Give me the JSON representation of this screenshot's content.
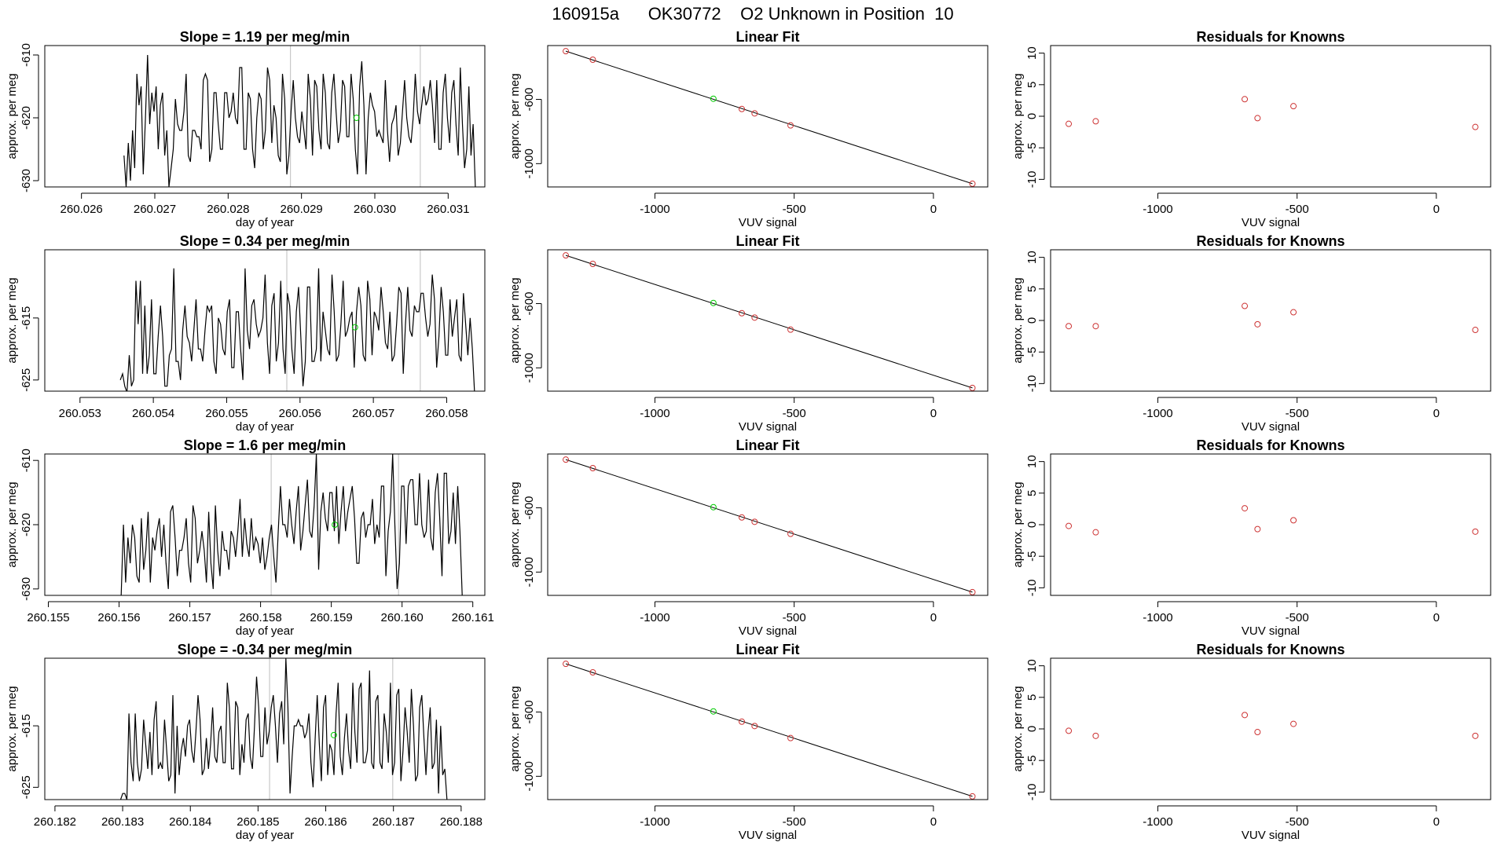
{
  "figure_title": "160915a      OK30772    O2 Unknown in Position  10",
  "colors": {
    "known": "#CD3333",
    "unknown": "#00CC00",
    "line": "#000000",
    "refline": "#BEBEBE"
  },
  "chart_data": [
    {
      "type": "line",
      "row": 0,
      "panel": "timeseries",
      "title": "Slope =  1.19  per meg/min",
      "xlabel": "day of year",
      "ylabel": "approx. per meg",
      "xlim": [
        260.0255,
        260.0315
      ],
      "ylim": [
        -631,
        -608.5
      ],
      "xticks": [
        "260.026",
        "260.027",
        "260.028",
        "260.029",
        "260.030",
        "260.031"
      ],
      "yticks": [
        "-610",
        "-620",
        "-630"
      ],
      "series_start": 260.02658,
      "series_end": 260.03137,
      "unknown_point": {
        "x": 260.02975,
        "y": -620.0
      },
      "ref_lines": [
        260.02885,
        260.03062
      ],
      "values": [
        -626.0,
        -631.0,
        -624.0,
        -630.0,
        -622.0,
        -628.0,
        -613.0,
        -618.0,
        -615.0,
        -629.0,
        -620.0,
        -610.0,
        -621.0,
        -616.0,
        -619.0,
        -615.0,
        -625.0,
        -618.0,
        -616.0,
        -626.0,
        -622.0,
        -631.0,
        -628.0,
        -625.0,
        -617.0,
        -621.0,
        -622.0,
        -622.0,
        -619.0,
        -613.0,
        -626.0,
        -627.0,
        -622.0,
        -622.0,
        -623.0,
        -623.0,
        -625.0,
        -614.0,
        -613.0,
        -614.0,
        -627.0,
        -625.0,
        -616.0,
        -616.0,
        -621.0,
        -625.0,
        -625.0,
        -616.0,
        -616.0,
        -620.0,
        -619.0,
        -616.0,
        -620.0,
        -621.0,
        -612.0,
        -612.0,
        -625.0,
        -625.0,
        -616.0,
        -617.0,
        -625.0,
        -628.0,
        -620.0,
        -616.0,
        -617.0,
        -625.0,
        -622.0,
        -612.0,
        -614.0,
        -624.0,
        -618.0,
        -620.0,
        -626.0,
        -627.0,
        -613.0,
        -617.0,
        -629.0,
        -626.0,
        -619.0,
        -614.0,
        -620.0,
        -623.0,
        -624.0,
        -619.0,
        -622.0,
        -625.0,
        -613.0,
        -617.0,
        -626.0,
        -614.0,
        -615.0,
        -622.0,
        -625.0,
        -613.0,
        -616.0,
        -624.0,
        -625.0,
        -616.0,
        -613.0,
        -619.0,
        -624.0,
        -622.0,
        -614.0,
        -615.0,
        -623.0,
        -623.0,
        -613.0,
        -617.0,
        -625.0,
        -629.0,
        -615.0,
        -611.0,
        -618.0,
        -629.0,
        -620.0,
        -616.0,
        -618.0,
        -619.0,
        -623.0,
        -622.0,
        -623.0,
        -624.0,
        -614.0,
        -622.0,
        -627.0,
        -621.0,
        -620.0,
        -618.0,
        -626.0,
        -624.0,
        -619.0,
        -614.0,
        -620.0,
        -623.0,
        -624.0,
        -620.0,
        -613.0,
        -619.0,
        -621.0,
        -618.0,
        -615.0,
        -618.0,
        -617.0,
        -614.0,
        -618.0,
        -624.0,
        -614.0,
        -625.0,
        -625.0,
        -616.0,
        -613.0,
        -620.0,
        -624.0,
        -616.0,
        -614.0,
        -621.0,
        -626.0,
        -612.0,
        -621.0,
        -628.0,
        -625.0,
        -615.0,
        -626.0,
        -621.0,
        -631.0
      ]
    },
    {
      "type": "scatter",
      "row": 0,
      "panel": "linear_fit",
      "title": "Linear Fit",
      "xlabel": "VUV signal",
      "ylabel": "approx. per meg",
      "xlim": [
        -1385,
        195
      ],
      "ylim": [
        -1145,
        -265
      ],
      "xticks": [
        "-1000",
        "-500",
        "0"
      ],
      "yticks": [
        "-600",
        "-1000"
      ],
      "fit_line": {
        "x": [
          -1320,
          140
        ],
        "y": [
          -300,
          -1125
        ]
      },
      "known_points": {
        "x": [
          -1320,
          -1223,
          -688,
          -642,
          -513,
          140
        ],
        "y": [
          -300,
          -353,
          -660,
          -687,
          -762,
          -1125
        ]
      },
      "unknown_point": {
        "x": -790,
        "y": -596
      }
    },
    {
      "type": "scatter",
      "row": 0,
      "panel": "residuals",
      "title": "Residuals for Knowns",
      "xlabel": "VUV signal",
      "ylabel": "approx. per meg",
      "xlim": [
        -1385,
        195
      ],
      "ylim": [
        -11.2,
        11.2
      ],
      "xticks": [
        "-1000",
        "-500",
        "0"
      ],
      "yticks": [
        "10",
        "5",
        "0",
        "-5",
        "-10"
      ],
      "x": [
        -1320,
        -1223,
        -688,
        -642,
        -513,
        140
      ],
      "y": [
        -1.2,
        -0.8,
        2.7,
        -0.3,
        1.6,
        -1.7
      ]
    },
    {
      "type": "line",
      "row": 1,
      "panel": "timeseries",
      "title": "Slope =  0.34  per meg/min",
      "xlabel": "day of year",
      "ylabel": "approx. per meg",
      "xlim": [
        260.05252,
        260.05852
      ],
      "ylim": [
        -626.8,
        -604.0
      ],
      "xticks": [
        "260.053",
        "260.054",
        "260.055",
        "260.056",
        "260.057",
        "260.058"
      ],
      "yticks": [
        "-615",
        "-625"
      ],
      "series_start": 260.05355,
      "series_end": 260.05838,
      "unknown_point": {
        "x": 260.05675,
        "y": -616.5
      },
      "ref_lines": [
        260.05582,
        260.05764
      ],
      "values": [
        -625.0,
        -624.0,
        -626.0,
        -627.0,
        -621.0,
        -626.0,
        -625.0,
        -609.0,
        -616.0,
        -609.0,
        -624.0,
        -613.0,
        -624.0,
        -621.0,
        -612.0,
        -624.0,
        -624.0,
        -618.0,
        -613.0,
        -618.0,
        -626.0,
        -626.0,
        -621.0,
        -620.0,
        -607.0,
        -622.0,
        -622.0,
        -625.0,
        -617.0,
        -613.0,
        -618.0,
        -619.0,
        -622.0,
        -617.0,
        -612.0,
        -620.0,
        -620.0,
        -622.0,
        -617.0,
        -613.0,
        -614.0,
        -613.0,
        -622.0,
        -624.0,
        -615.0,
        -616.0,
        -620.0,
        -621.0,
        -614.0,
        -612.0,
        -623.0,
        -623.0,
        -614.0,
        -614.0,
        -620.0,
        -625.0,
        -607.0,
        -617.0,
        -620.0,
        -613.0,
        -612.0,
        -616.0,
        -618.0,
        -617.0,
        -615.0,
        -608.0,
        -619.0,
        -624.0,
        -613.0,
        -611.0,
        -622.0,
        -619.0,
        -609.0,
        -620.0,
        -624.0,
        -611.0,
        -613.0,
        -620.0,
        -624.0,
        -614.0,
        -610.0,
        -618.0,
        -626.0,
        -622.0,
        -610.0,
        -610.0,
        -622.0,
        -622.0,
        -620.0,
        -607.0,
        -622.0,
        -614.0,
        -617.0,
        -620.0,
        -621.0,
        -608.0,
        -614.0,
        -622.0,
        -621.0,
        -616.0,
        -609.0,
        -618.0,
        -617.0,
        -615.0,
        -614.0,
        -623.0,
        -614.0,
        -610.0,
        -613.0,
        -621.0,
        -622.0,
        -609.0,
        -612.0,
        -621.0,
        -614.0,
        -615.0,
        -617.0,
        -610.0,
        -614.0,
        -619.0,
        -620.0,
        -614.0,
        -622.0,
        -621.0,
        -616.0,
        -610.0,
        -611.0,
        -624.0,
        -616.0,
        -610.0,
        -617.0,
        -618.0,
        -613.0,
        -614.0,
        -614.0,
        -611.0,
        -611.0,
        -615.0,
        -618.0,
        -616.0,
        -608.0,
        -612.0,
        -623.0,
        -618.0,
        -610.0,
        -614.0,
        -621.0,
        -621.0,
        -612.0,
        -618.0,
        -615.0,
        -612.0,
        -621.0,
        -622.0,
        -611.0,
        -616.0,
        -621.0,
        -615.0,
        -620.0,
        -627.0
      ]
    },
    {
      "type": "scatter",
      "row": 1,
      "panel": "linear_fit",
      "title": "Linear Fit",
      "xlabel": "VUV signal",
      "ylabel": "approx. per meg",
      "xlim": [
        -1385,
        195
      ],
      "ylim": [
        -1145,
        -265
      ],
      "xticks": [
        "-1000",
        "-500",
        "0"
      ],
      "yticks": [
        "-600",
        "-1000"
      ],
      "fit_line": {
        "x": [
          -1320,
          140
        ],
        "y": [
          -300,
          -1125
        ]
      },
      "known_points": {
        "x": [
          -1320,
          -1223,
          -688,
          -642,
          -513,
          140
        ],
        "y": [
          -300,
          -353,
          -660,
          -687,
          -762,
          -1125
        ]
      },
      "unknown_point": {
        "x": -790,
        "y": -596
      }
    },
    {
      "type": "scatter",
      "row": 1,
      "panel": "residuals",
      "title": "Residuals for Knowns",
      "xlabel": "VUV signal",
      "ylabel": "approx. per meg",
      "xlim": [
        -1385,
        195
      ],
      "ylim": [
        -11.2,
        11.2
      ],
      "xticks": [
        "-1000",
        "-500",
        "0"
      ],
      "yticks": [
        "10",
        "5",
        "0",
        "-5",
        "-10"
      ],
      "x": [
        -1320,
        -1223,
        -688,
        -642,
        -513,
        140
      ],
      "y": [
        -0.9,
        -0.9,
        2.3,
        -0.6,
        1.3,
        -1.5
      ]
    },
    {
      "type": "line",
      "row": 2,
      "panel": "timeseries",
      "title": "Slope =  1.6  per meg/min",
      "xlabel": "day of year",
      "ylabel": "approx. per meg",
      "xlim": [
        260.15495,
        260.16117
      ],
      "ylim": [
        -631.0,
        -609.0
      ],
      "xticks": [
        "260.155",
        "260.156",
        "260.157",
        "260.158",
        "260.159",
        "260.160",
        "260.161"
      ],
      "yticks": [
        "-610",
        "-620",
        "-630"
      ],
      "series_start": 260.15603,
      "series_end": 260.16085,
      "unknown_point": {
        "x": 260.15905,
        "y": -620.0
      },
      "ref_lines": [
        260.15815,
        260.15995
      ],
      "values": [
        -631.0,
        -620.0,
        -629.0,
        -622.0,
        -626.0,
        -620.0,
        -622.0,
        -628.0,
        -629.0,
        -619.0,
        -627.0,
        -624.0,
        -618.0,
        -629.0,
        -622.0,
        -624.0,
        -621.0,
        -619.0,
        -625.0,
        -620.0,
        -626.0,
        -630.0,
        -618.0,
        -617.0,
        -622.0,
        -628.0,
        -624.0,
        -624.0,
        -622.0,
        -619.0,
        -626.0,
        -629.0,
        -617.0,
        -619.0,
        -626.0,
        -624.0,
        -621.0,
        -624.0,
        -629.0,
        -618.0,
        -626.0,
        -630.0,
        -617.0,
        -624.0,
        -628.0,
        -621.0,
        -624.0,
        -624.0,
        -627.0,
        -621.0,
        -622.0,
        -625.0,
        -621.0,
        -616.0,
        -625.0,
        -619.0,
        -623.0,
        -625.0,
        -619.0,
        -624.0,
        -622.0,
        -623.0,
        -626.0,
        -622.0,
        -627.0,
        -625.0,
        -622.0,
        -620.0,
        -625.0,
        -629.0,
        -621.0,
        -614.0,
        -620.0,
        -620.0,
        -622.0,
        -616.0,
        -620.0,
        -623.0,
        -618.0,
        -614.0,
        -624.0,
        -621.0,
        -617.0,
        -613.0,
        -621.0,
        -622.0,
        -617.0,
        -609.0,
        -627.0,
        -618.0,
        -615.0,
        -619.0,
        -621.0,
        -615.0,
        -615.0,
        -621.0,
        -614.0,
        -623.0,
        -618.0,
        -614.0,
        -621.0,
        -618.0,
        -616.0,
        -614.0,
        -619.0,
        -626.0,
        -626.0,
        -619.0,
        -618.0,
        -622.0,
        -620.0,
        -620.0,
        -616.0,
        -623.0,
        -620.0,
        -622.0,
        -614.0,
        -614.0,
        -628.0,
        -621.0,
        -618.0,
        -609.0,
        -620.0,
        -630.0,
        -626.0,
        -614.0,
        -614.0,
        -623.0,
        -614.0,
        -613.0,
        -613.0,
        -620.0,
        -620.0,
        -612.0,
        -620.0,
        -622.0,
        -621.0,
        -613.0,
        -622.0,
        -624.0,
        -615.0,
        -612.0,
        -619.0,
        -628.0,
        -612.0,
        -612.0,
        -623.0,
        -621.0,
        -615.0,
        -623.0,
        -614.0,
        -621.0,
        -631.0
      ]
    },
    {
      "type": "scatter",
      "row": 2,
      "panel": "linear_fit",
      "title": "Linear Fit",
      "xlabel": "VUV signal",
      "ylabel": "approx. per meg",
      "xlim": [
        -1385,
        195
      ],
      "ylim": [
        -1145,
        -265
      ],
      "xticks": [
        "-1000",
        "-500",
        "0"
      ],
      "yticks": [
        "-600",
        "-1000"
      ],
      "fit_line": {
        "x": [
          -1320,
          140
        ],
        "y": [
          -300,
          -1125
        ]
      },
      "known_points": {
        "x": [
          -1320,
          -1223,
          -688,
          -642,
          -513,
          140
        ],
        "y": [
          -300,
          -353,
          -660,
          -687,
          -762,
          -1125
        ]
      },
      "unknown_point": {
        "x": -790,
        "y": -596
      }
    },
    {
      "type": "scatter",
      "row": 2,
      "panel": "residuals",
      "title": "Residuals for Knowns",
      "xlabel": "VUV signal",
      "ylabel": "approx. per meg",
      "xlim": [
        -1385,
        195
      ],
      "ylim": [
        -11.2,
        11.2
      ],
      "xticks": [
        "-1000",
        "-500",
        "0"
      ],
      "yticks": [
        "10",
        "5",
        "0",
        "-5",
        "-10"
      ],
      "x": [
        -1320,
        -1223,
        -688,
        -642,
        -513,
        140
      ],
      "y": [
        -0.2,
        -1.2,
        2.6,
        -0.7,
        0.7,
        -1.1
      ]
    },
    {
      "type": "line",
      "row": 3,
      "panel": "timeseries",
      "title": "Slope =  -0.34  per meg/min",
      "xlabel": "day of year",
      "ylabel": "approx. per meg",
      "xlim": [
        260.18185,
        260.18835
      ],
      "ylim": [
        -627.0,
        -604.0
      ],
      "xticks": [
        "260.182",
        "260.183",
        "260.184",
        "260.185",
        "260.186",
        "260.187",
        "260.188"
      ],
      "yticks": [
        "-615",
        "-625"
      ],
      "series_start": 260.18297,
      "series_end": 260.18779,
      "unknown_point": {
        "x": 260.18612,
        "y": -616.5
      },
      "ref_lines": [
        260.18517,
        260.18699
      ],
      "values": [
        -627.0,
        -626.0,
        -626.0,
        -627.0,
        -613.0,
        -621.0,
        -624.0,
        -613.0,
        -621.0,
        -624.0,
        -622.0,
        -614.0,
        -618.0,
        -622.0,
        -616.0,
        -623.0,
        -614.0,
        -611.0,
        -622.0,
        -621.0,
        -622.0,
        -614.0,
        -619.0,
        -624.0,
        -623.0,
        -610.0,
        -626.0,
        -615.0,
        -623.0,
        -619.0,
        -617.0,
        -620.0,
        -615.0,
        -614.0,
        -619.0,
        -621.0,
        -616.0,
        -610.0,
        -614.0,
        -623.0,
        -622.0,
        -617.0,
        -622.0,
        -618.0,
        -612.0,
        -620.0,
        -621.0,
        -616.0,
        -615.0,
        -621.0,
        -621.0,
        -608.0,
        -612.0,
        -622.0,
        -622.0,
        -611.0,
        -612.0,
        -623.0,
        -618.0,
        -621.0,
        -614.0,
        -613.0,
        -620.0,
        -622.0,
        -615.0,
        -607.0,
        -612.0,
        -620.0,
        -620.0,
        -612.0,
        -618.0,
        -616.0,
        -612.0,
        -610.0,
        -615.0,
        -621.0,
        -613.0,
        -611.0,
        -618.0,
        -604.0,
        -612.0,
        -626.0,
        -620.0,
        -615.0,
        -615.0,
        -614.0,
        -615.0,
        -615.0,
        -617.0,
        -616.0,
        -613.0,
        -621.0,
        -625.0,
        -617.0,
        -610.0,
        -618.0,
        -624.0,
        -612.0,
        -610.0,
        -623.0,
        -618.0,
        -619.0,
        -623.0,
        -613.0,
        -608.0,
        -620.0,
        -623.0,
        -617.0,
        -613.0,
        -619.0,
        -622.0,
        -608.0,
        -616.0,
        -621.0,
        -609.0,
        -608.0,
        -621.0,
        -621.0,
        -619.0,
        -606.0,
        -621.0,
        -622.0,
        -611.0,
        -610.0,
        -621.0,
        -622.0,
        -613.0,
        -616.0,
        -621.0,
        -608.0,
        -623.0,
        -621.0,
        -610.0,
        -609.0,
        -624.0,
        -619.0,
        -612.0,
        -616.0,
        -621.0,
        -609.0,
        -615.0,
        -624.0,
        -623.0,
        -612.0,
        -610.0,
        -617.0,
        -623.0,
        -616.0,
        -612.0,
        -622.0,
        -621.0,
        -614.0,
        -626.0,
        -615.0,
        -623.0,
        -622.0,
        -627.0
      ]
    },
    {
      "type": "scatter",
      "row": 3,
      "panel": "linear_fit",
      "title": "Linear Fit",
      "xlabel": "VUV signal",
      "ylabel": "approx. per meg",
      "xlim": [
        -1385,
        195
      ],
      "ylim": [
        -1145,
        -265
      ],
      "xticks": [
        "-1000",
        "-500",
        "0"
      ],
      "yticks": [
        "-600",
        "-1000"
      ],
      "fit_line": {
        "x": [
          -1320,
          140
        ],
        "y": [
          -300,
          -1125
        ]
      },
      "known_points": {
        "x": [
          -1320,
          -1223,
          -688,
          -642,
          -513,
          140
        ],
        "y": [
          -300,
          -353,
          -660,
          -687,
          -762,
          -1125
        ]
      },
      "unknown_point": {
        "x": -790,
        "y": -596
      }
    },
    {
      "type": "scatter",
      "row": 3,
      "panel": "residuals",
      "title": "Residuals for Knowns",
      "xlabel": "VUV signal",
      "ylabel": "approx. per meg",
      "xlim": [
        -1385,
        195
      ],
      "ylim": [
        -11.2,
        11.2
      ],
      "xticks": [
        "-1000",
        "-500",
        "0"
      ],
      "yticks": [
        "10",
        "5",
        "0",
        "-5",
        "-10"
      ],
      "x": [
        -1320,
        -1223,
        -688,
        -642,
        -513,
        140
      ],
      "y": [
        -0.3,
        -1.1,
        2.2,
        -0.5,
        0.8,
        -1.1
      ]
    }
  ]
}
